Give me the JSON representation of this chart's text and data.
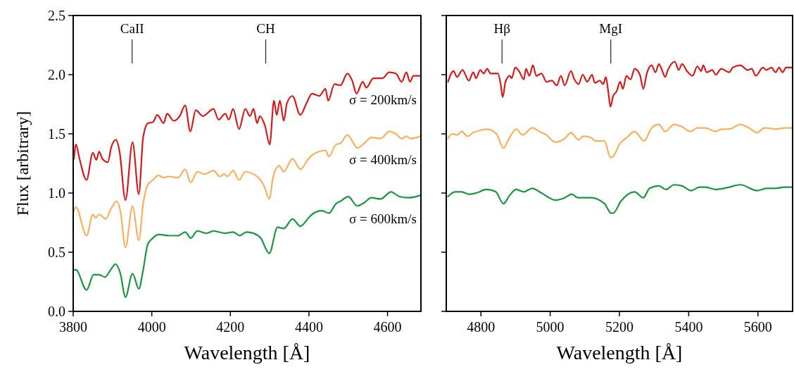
{
  "chart_data": [
    {
      "type": "line",
      "xlabel": "Wavelength [Å]",
      "ylabel": "Flux [arbitrary]",
      "xlim": [
        3800,
        4685
      ],
      "xticks": [
        3800,
        4000,
        4200,
        4400,
        4600
      ],
      "ylim": [
        0,
        2.5
      ],
      "yticks": [
        {
          "value": 0,
          "label": "0.0"
        },
        {
          "value": 0.5,
          "label": "0.5"
        },
        {
          "value": 1,
          "label": "1.0"
        },
        {
          "value": 1.5,
          "label": "1.5"
        },
        {
          "value": 2,
          "label": "2.0"
        },
        {
          "value": 2.5,
          "label": "2.5"
        }
      ],
      "ref_lines": [
        {
          "axis": "x",
          "value": 3950,
          "label": "CaII"
        },
        {
          "axis": "x",
          "value": 4290,
          "label": "CH"
        }
      ],
      "series": [
        {
          "name": "σ = 200km/s",
          "color": "#d7191c",
          "x": [
            3802,
            3807,
            3816,
            3834,
            3850,
            3859,
            3866,
            3874,
            3888,
            3897,
            3909,
            3918,
            3933,
            3951,
            3967,
            3978,
            3990,
            4003,
            4014,
            4030,
            4039,
            4056,
            4071,
            4085,
            4098,
            4112,
            4130,
            4157,
            4170,
            4187,
            4196,
            4207,
            4222,
            4238,
            4250,
            4259,
            4268,
            4275,
            4288,
            4300,
            4311,
            4318,
            4326,
            4336,
            4344,
            4358,
            4378,
            4394,
            4408,
            4426,
            4442,
            4449,
            4465,
            4480,
            4498,
            4510,
            4521,
            4537,
            4546,
            4564,
            4587,
            4604,
            4621,
            4636,
            4648,
            4657,
            4666,
            4683
          ],
          "values": [
            1.29,
            1.41,
            1.29,
            1.11,
            1.34,
            1.28,
            1.35,
            1.29,
            1.26,
            1.39,
            1.45,
            1.35,
            0.94,
            1.43,
            0.99,
            1.47,
            1.59,
            1.6,
            1.66,
            1.59,
            1.67,
            1.61,
            1.65,
            1.74,
            1.52,
            1.7,
            1.65,
            1.71,
            1.62,
            1.67,
            1.62,
            1.71,
            1.54,
            1.71,
            1.65,
            1.71,
            1.59,
            1.65,
            1.57,
            1.41,
            1.78,
            1.66,
            1.78,
            1.61,
            1.76,
            1.82,
            1.66,
            1.76,
            1.84,
            1.82,
            1.88,
            1.78,
            1.92,
            1.91,
            2.01,
            1.95,
            1.84,
            1.94,
            1.89,
            1.97,
            1.97,
            2.02,
            2.01,
            1.94,
            2.02,
            1.94,
            1.99,
            1.99
          ]
        },
        {
          "name": "σ = 400km/s",
          "color": "#fdae61",
          "x": [
            3802,
            3807,
            3834,
            3850,
            3857,
            3866,
            3883,
            3895,
            3911,
            3920,
            3933,
            3951,
            3967,
            3978,
            3990,
            4003,
            4017,
            4031,
            4044,
            4067,
            4085,
            4099,
            4116,
            4134,
            4157,
            4173,
            4184,
            4193,
            4207,
            4222,
            4238,
            4259,
            4274,
            4286,
            4299,
            4309,
            4324,
            4336,
            4358,
            4378,
            4399,
            4408,
            4442,
            4451,
            4469,
            4480,
            4498,
            4510,
            4523,
            4541,
            4559,
            4582,
            4605,
            4621,
            4636,
            4648,
            4659,
            4683
          ],
          "values": [
            0.85,
            0.88,
            0.64,
            0.82,
            0.79,
            0.82,
            0.78,
            0.86,
            0.93,
            0.85,
            0.54,
            0.89,
            0.6,
            0.91,
            1.07,
            1.11,
            1.15,
            1.13,
            1.14,
            1.13,
            1.2,
            1.09,
            1.18,
            1.16,
            1.19,
            1.14,
            1.16,
            1.14,
            1.19,
            1.11,
            1.18,
            1.16,
            1.12,
            1.06,
            0.95,
            1.14,
            1.23,
            1.18,
            1.29,
            1.2,
            1.29,
            1.32,
            1.36,
            1.31,
            1.41,
            1.42,
            1.49,
            1.44,
            1.38,
            1.42,
            1.47,
            1.46,
            1.52,
            1.5,
            1.46,
            1.48,
            1.46,
            1.48
          ]
        },
        {
          "name": "σ = 600km/s",
          "color": "#1a9641",
          "x": [
            3802,
            3807,
            3834,
            3852,
            3865,
            3881,
            3895,
            3908,
            3920,
            3933,
            3951,
            3967,
            3978,
            3990,
            4003,
            4017,
            4044,
            4067,
            4085,
            4099,
            4116,
            4139,
            4157,
            4187,
            4207,
            4224,
            4241,
            4259,
            4277,
            4299,
            4320,
            4336,
            4358,
            4378,
            4399,
            4408,
            4433,
            4451,
            4469,
            4480,
            4500,
            4523,
            4541,
            4559,
            4582,
            4609,
            4630,
            4654,
            4683
          ],
          "values": [
            0.35,
            0.35,
            0.18,
            0.31,
            0.31,
            0.29,
            0.35,
            0.4,
            0.32,
            0.12,
            0.32,
            0.19,
            0.35,
            0.57,
            0.62,
            0.65,
            0.64,
            0.64,
            0.67,
            0.62,
            0.68,
            0.66,
            0.68,
            0.66,
            0.67,
            0.64,
            0.67,
            0.66,
            0.62,
            0.49,
            0.71,
            0.7,
            0.78,
            0.72,
            0.79,
            0.82,
            0.85,
            0.83,
            0.91,
            0.93,
            0.97,
            0.89,
            0.92,
            0.96,
            0.95,
            1.01,
            0.97,
            0.96,
            0.98
          ]
        }
      ]
    },
    {
      "type": "line",
      "xlabel": "Wavelength [Å]",
      "xlim": [
        4700,
        5700
      ],
      "xticks": [
        4800,
        5000,
        5200,
        5400,
        5600
      ],
      "ylim": [
        0,
        2.5
      ],
      "yticks": [
        {
          "value": 0,
          "label": null
        },
        {
          "value": 0.5,
          "label": null
        },
        {
          "value": 1,
          "label": null
        },
        {
          "value": 1.5,
          "label": null
        },
        {
          "value": 2,
          "label": null
        },
        {
          "value": 2.5,
          "label": null
        }
      ],
      "tick_labels": "x",
      "ref_lines": [
        {
          "axis": "x",
          "value": 4861,
          "label": "Hβ"
        },
        {
          "axis": "x",
          "value": 5175,
          "label": "MgI"
        }
      ],
      "series": [
        {
          "color": "#d7191c",
          "x": [
            4705,
            4721,
            4731,
            4747,
            4765,
            4778,
            4786,
            4798,
            4808,
            4818,
            4828,
            4849,
            4857,
            4863,
            4871,
            4883,
            4889,
            4899,
            4910,
            4924,
            4930,
            4940,
            4950,
            4960,
            4975,
            4989,
            5005,
            5019,
            5031,
            5042,
            5060,
            5070,
            5082,
            5094,
            5107,
            5121,
            5129,
            5143,
            5153,
            5161,
            5168,
            5174,
            5182,
            5192,
            5202,
            5210,
            5220,
            5232,
            5244,
            5259,
            5269,
            5279,
            5293,
            5304,
            5314,
            5324,
            5332,
            5340,
            5360,
            5371,
            5381,
            5395,
            5411,
            5425,
            5436,
            5442,
            5452,
            5468,
            5478,
            5494,
            5517,
            5527,
            5549,
            5570,
            5582,
            5594,
            5614,
            5624,
            5639,
            5651,
            5661,
            5671,
            5681,
            5699
          ],
          "values": [
            1.94,
            2.03,
            1.98,
            2.04,
            1.95,
            2.02,
            1.97,
            2.04,
            2.01,
            2.05,
            2.01,
            2.01,
            1.92,
            1.81,
            1.94,
            1.99,
            1.97,
            2.06,
            2.03,
            1.96,
            2.05,
            1.99,
            2.08,
            1.99,
            2.01,
            1.94,
            1.95,
            1.91,
            1.99,
            1.91,
            2.03,
            1.96,
            1.92,
            2.0,
            1.94,
            2.0,
            1.93,
            1.95,
            1.92,
            1.98,
            1.85,
            1.73,
            1.82,
            1.86,
            1.94,
            1.88,
            1.99,
            1.96,
            2.05,
            2.0,
            1.88,
            2.01,
            2.08,
            2.02,
            2.09,
            2.03,
            1.98,
            2.04,
            2.11,
            2.04,
            2.09,
            2.03,
            1.99,
            2.07,
            2.03,
            2.08,
            2.02,
            2.04,
            2.0,
            2.05,
            2.02,
            2.06,
            2.08,
            2.04,
            2.05,
            1.99,
            2.06,
            2.04,
            2.06,
            2.02,
            2.06,
            2.02,
            2.06,
            2.06
          ]
        },
        {
          "color": "#fdae61",
          "x": [
            4705,
            4717,
            4731,
            4745,
            4761,
            4778,
            4798,
            4818,
            4845,
            4865,
            4883,
            4902,
            4920,
            4948,
            4969,
            4989,
            5015,
            5042,
            5060,
            5082,
            5096,
            5117,
            5131,
            5157,
            5174,
            5182,
            5202,
            5222,
            5244,
            5271,
            5293,
            5314,
            5332,
            5358,
            5381,
            5405,
            5425,
            5448,
            5478,
            5496,
            5517,
            5549,
            5574,
            5598,
            5618,
            5651,
            5679,
            5699
          ],
          "values": [
            1.46,
            1.5,
            1.49,
            1.52,
            1.48,
            1.51,
            1.53,
            1.54,
            1.5,
            1.38,
            1.47,
            1.54,
            1.49,
            1.55,
            1.52,
            1.49,
            1.43,
            1.46,
            1.51,
            1.45,
            1.48,
            1.47,
            1.44,
            1.44,
            1.3,
            1.31,
            1.42,
            1.47,
            1.52,
            1.44,
            1.55,
            1.58,
            1.52,
            1.58,
            1.56,
            1.52,
            1.55,
            1.55,
            1.52,
            1.54,
            1.54,
            1.58,
            1.55,
            1.51,
            1.55,
            1.54,
            1.55,
            1.55
          ]
        },
        {
          "color": "#1a9641",
          "x": [
            4705,
            4725,
            4745,
            4765,
            4786,
            4816,
            4843,
            4865,
            4883,
            4902,
            4924,
            4948,
            4975,
            5015,
            5042,
            5062,
            5080,
            5117,
            5157,
            5176,
            5182,
            5204,
            5244,
            5269,
            5287,
            5314,
            5334,
            5358,
            5381,
            5407,
            5431,
            5448,
            5478,
            5517,
            5549,
            5598,
            5624,
            5651,
            5679,
            5699
          ],
          "values": [
            0.97,
            1.01,
            1.01,
            0.99,
            1.0,
            1.03,
            1.01,
            0.91,
            0.98,
            1.03,
            1.01,
            1.04,
            1.0,
            0.94,
            0.96,
            0.99,
            0.96,
            0.96,
            0.91,
            0.83,
            0.83,
            0.93,
            1.01,
            0.96,
            1.04,
            1.06,
            1.03,
            1.07,
            1.06,
            1.02,
            1.05,
            1.05,
            1.03,
            1.05,
            1.07,
            1.02,
            1.04,
            1.04,
            1.05,
            1.05
          ]
        }
      ]
    }
  ]
}
